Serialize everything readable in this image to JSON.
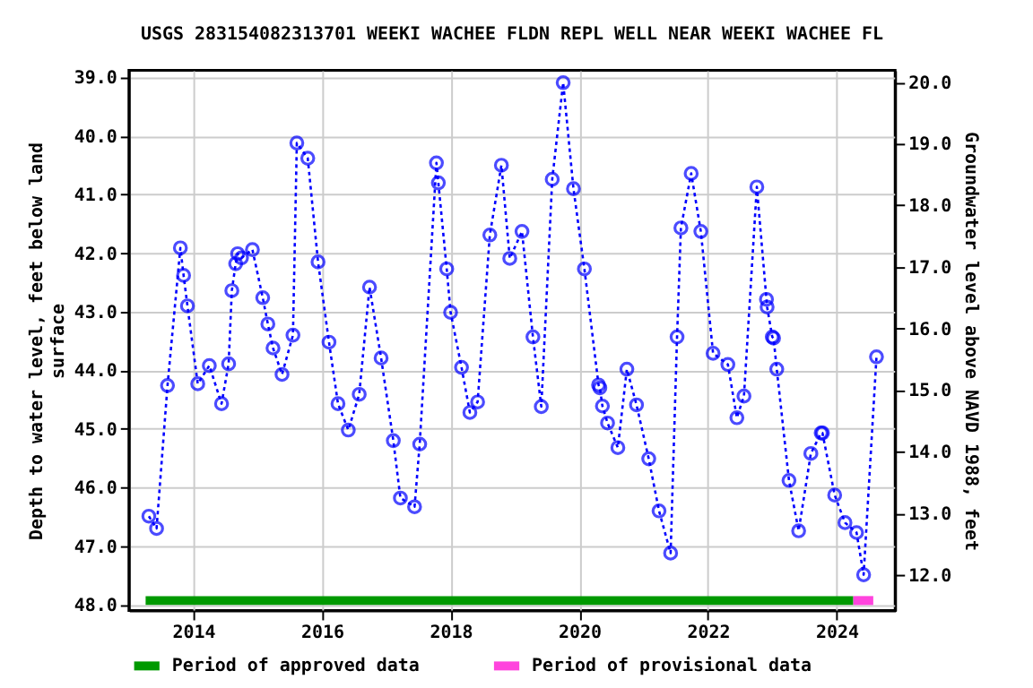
{
  "chart_data": {
    "type": "line",
    "title": "USGS 283154082313701 WEEKI WACHEE FLDN REPL WELL NEAR WEEKI WACHEE FL",
    "ylabel": "Depth to water level, feet below land surface",
    "y2label": "Groundwater level above NAVD 1988, feet",
    "xlim": [
      2013.0,
      2024.91
    ],
    "xticks": [
      2014,
      2016,
      2018,
      2020,
      2022,
      2024
    ],
    "ylim": [
      48.1,
      38.88
    ],
    "yticks": [
      {
        "value": 39,
        "label": "39.0"
      },
      {
        "value": 40,
        "label": "40.0"
      },
      {
        "value": 41,
        "label": "41.0"
      },
      {
        "value": 42,
        "label": "42.0"
      },
      {
        "value": 43,
        "label": "43.0"
      },
      {
        "value": 44,
        "label": "44.0"
      },
      {
        "value": 45,
        "label": "45.0"
      },
      {
        "value": 46,
        "label": "46.0"
      },
      {
        "value": 47,
        "label": "47.0"
      },
      {
        "value": 48,
        "label": "48.0"
      }
    ],
    "y2lim": [
      11.42,
      20.19
    ],
    "y2ticks": [
      {
        "value": 12,
        "label": "12.0"
      },
      {
        "value": 13,
        "label": "13.0"
      },
      {
        "value": 14,
        "label": "14.0"
      },
      {
        "value": 15,
        "label": "15.0"
      },
      {
        "value": 16,
        "label": "16.0"
      },
      {
        "value": 17,
        "label": "17.0"
      },
      {
        "value": 18,
        "label": "18.0"
      },
      {
        "value": 19,
        "label": "19.0"
      },
      {
        "value": 20,
        "label": "20.0"
      }
    ],
    "grid": true,
    "legend": "bottom",
    "series": [
      {
        "color": "#0000ff",
        "marker": "circle",
        "line_style": "dotted",
        "x": [
          2013.31,
          2013.43,
          2013.6,
          2013.8,
          2013.85,
          2013.91,
          2014.07,
          2014.25,
          2014.44,
          2014.55,
          2014.6,
          2014.66,
          2014.69,
          2014.75,
          2014.92,
          2015.08,
          2015.16,
          2015.24,
          2015.38,
          2015.55,
          2015.61,
          2015.78,
          2015.94,
          2016.11,
          2016.25,
          2016.41,
          2016.58,
          2016.74,
          2016.92,
          2017.11,
          2017.22,
          2017.44,
          2017.52,
          2017.78,
          2017.81,
          2017.94,
          2018.0,
          2018.17,
          2018.3,
          2018.42,
          2018.61,
          2018.79,
          2018.92,
          2019.11,
          2019.28,
          2019.41,
          2019.58,
          2019.75,
          2019.91,
          2020.08,
          2020.3,
          2020.32,
          2020.36,
          2020.44,
          2020.6,
          2020.74,
          2020.89,
          2021.08,
          2021.24,
          2021.42,
          2021.52,
          2021.58,
          2021.74,
          2021.89,
          2022.08,
          2022.31,
          2022.45,
          2022.56,
          2022.76,
          2022.91,
          2022.92,
          2023.0,
          2023.02,
          2023.07,
          2023.26,
          2023.41,
          2023.6,
          2023.76,
          2023.78,
          2023.97,
          2024.13,
          2024.31,
          2024.42,
          2024.62
        ],
        "values": [
          46.49,
          46.7,
          44.26,
          41.91,
          42.38,
          42.9,
          44.23,
          43.92,
          44.57,
          43.89,
          42.64,
          42.18,
          42.01,
          42.08,
          41.94,
          42.76,
          43.21,
          43.62,
          44.07,
          43.4,
          40.12,
          40.38,
          42.15,
          43.52,
          44.57,
          45.02,
          44.41,
          42.58,
          43.79,
          45.2,
          46.18,
          46.33,
          45.26,
          40.46,
          40.8,
          42.27,
          43.01,
          43.95,
          44.72,
          44.54,
          41.69,
          40.5,
          42.09,
          41.63,
          43.43,
          44.62,
          40.74,
          39.09,
          40.9,
          42.27,
          44.25,
          44.3,
          44.61,
          44.9,
          45.32,
          43.98,
          44.59,
          45.51,
          46.4,
          47.12,
          43.43,
          41.57,
          40.64,
          41.63,
          43.71,
          43.9,
          44.81,
          44.44,
          40.87,
          42.79,
          42.92,
          43.43,
          43.45,
          43.98,
          45.88,
          46.74,
          45.42,
          45.07,
          45.07,
          46.13,
          46.6,
          46.77,
          47.49,
          43.77
        ]
      },
      {
        "name": "Period of approved data",
        "color": "#009900",
        "line_style": "solid",
        "x": [
          2013.26,
          2024.26
        ],
        "values": [
          47.93,
          47.93
        ]
      },
      {
        "name": "Period of provisional data",
        "color": "#ff44dd",
        "line_style": "solid",
        "x": [
          2024.26,
          2024.57
        ],
        "values": [
          47.93,
          47.93
        ]
      }
    ]
  }
}
